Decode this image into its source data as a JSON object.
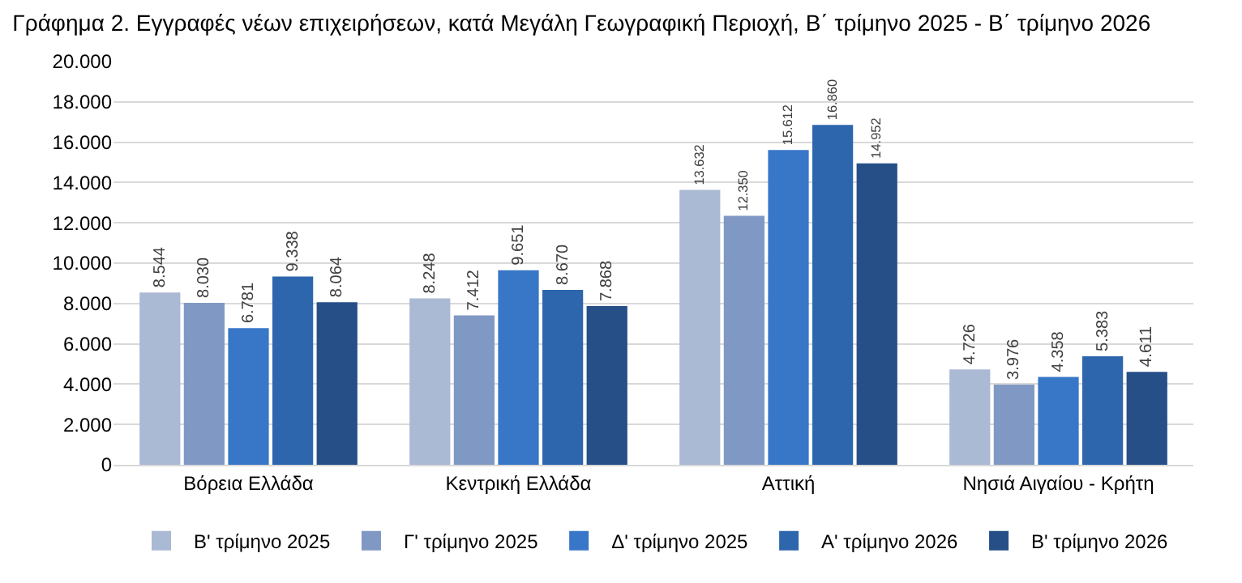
{
  "chart_data": {
    "type": "bar",
    "title": "Γράφημα 2. Εγγραφές νέων επιχειρήσεων, κατά Μεγάλη Γεωγραφική Περιοχή, Β΄ τρίμηνο 2025 - Β΄ τρίμηνο 2026",
    "categories": [
      "Βόρεια Ελλάδα",
      "Κεντρική Ελλάδα",
      "Αττική",
      "Νησιά Αιγαίου - Κρήτη"
    ],
    "series": [
      {
        "name": "Β' τρίμηνο 2025",
        "color": "#aab9d4",
        "values": [
          8544,
          8248,
          13632,
          4726
        ],
        "value_labels": [
          "8.544",
          "8.248",
          "13.632",
          "4.726"
        ]
      },
      {
        "name": "Γ' τρίμηνο 2025",
        "color": "#8099c4",
        "values": [
          8030,
          7412,
          12350,
          3976
        ],
        "value_labels": [
          "8.030",
          "7.412",
          "12.350",
          "3.976"
        ]
      },
      {
        "name": "Δ' τρίμηνο 2025",
        "color": "#3877c8",
        "values": [
          6781,
          9651,
          15612,
          4358
        ],
        "value_labels": [
          "6.781",
          "9.651",
          "15.612",
          "4.358"
        ]
      },
      {
        "name": "Α' τρίμηνο 2026",
        "color": "#2e66ae",
        "values": [
          9338,
          8670,
          16860,
          5383
        ],
        "value_labels": [
          "9.338",
          "8.670",
          "16.860",
          "5.383"
        ]
      },
      {
        "name": "Β' τρίμηνο 2026",
        "color": "#264f88",
        "values": [
          8064,
          7868,
          14952,
          4611
        ],
        "value_labels": [
          "8.064",
          "7.868",
          "14.952",
          "4.611"
        ]
      }
    ],
    "ylim": [
      0,
      20000
    ],
    "yticks": [
      {
        "value": 0,
        "label": "0"
      },
      {
        "value": 2000,
        "label": "2.000"
      },
      {
        "value": 4000,
        "label": "4.000"
      },
      {
        "value": 6000,
        "label": "6.000"
      },
      {
        "value": 8000,
        "label": "8.000"
      },
      {
        "value": 10000,
        "label": "10.000"
      },
      {
        "value": 12000,
        "label": "12.000"
      },
      {
        "value": 14000,
        "label": "14.000"
      },
      {
        "value": 16000,
        "label": "16.000"
      },
      {
        "value": 18000,
        "label": "18.000"
      },
      {
        "value": 20000,
        "label": "20.000"
      }
    ],
    "grid": "y",
    "legend": "bottom"
  }
}
